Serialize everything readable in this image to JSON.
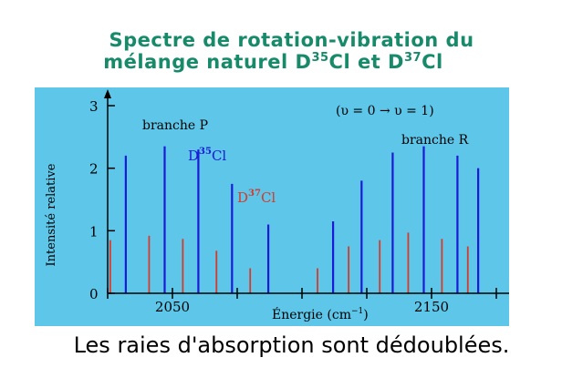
{
  "title_line1": "Spectre de rotation-vibration du",
  "title_line2_prefix": "mélange naturel  D",
  "title_iso1": "35",
  "title_mid": "Cl  et  D",
  "title_iso2": "37",
  "title_suffix": "Cl",
  "caption": "Les raies d'absorption sont dédoublées.",
  "colors": {
    "background": "#5ec6e9",
    "d35": "#1a1ad8",
    "d37": "#d63a2a",
    "title": "#178a6a"
  },
  "chart_data": {
    "type": "bar",
    "ylabel": "Intensité relative",
    "xlabel": "Énergie (cm",
    "xlabel_sup": "−1",
    "xlabel_end": ")",
    "transition": "(υ = 0 → υ = 1)",
    "branch_p": "branche P",
    "branch_r": "branche R",
    "label_d35_pre": "D",
    "label_d35_sup": "35",
    "label_d35_post": "Cl",
    "label_d37_pre": "D",
    "label_d37_sup": "37",
    "label_d37_post": "Cl",
    "xlim": [
      2025,
      2175
    ],
    "ylim": [
      0,
      3
    ],
    "xticks": [
      2050,
      2150
    ],
    "yticks": [
      0,
      1,
      2,
      3
    ],
    "series": [
      {
        "name": "D35Cl",
        "color": "#1a1ad8",
        "x": [
          2032,
          2047,
          2060,
          2073,
          2087,
          2112,
          2123,
          2135,
          2147,
          2160,
          2168
        ],
        "values": [
          2.2,
          2.35,
          2.3,
          1.75,
          1.1,
          1.15,
          1.8,
          2.25,
          2.35,
          2.2,
          2.0
        ]
      },
      {
        "name": "D37Cl",
        "color": "#d63a2a",
        "x": [
          2026,
          2041,
          2054,
          2067,
          2080,
          2106,
          2118,
          2130,
          2141,
          2154,
          2164
        ],
        "values": [
          0.85,
          0.92,
          0.87,
          0.68,
          0.4,
          0.4,
          0.75,
          0.85,
          0.97,
          0.87,
          0.75
        ]
      }
    ]
  }
}
